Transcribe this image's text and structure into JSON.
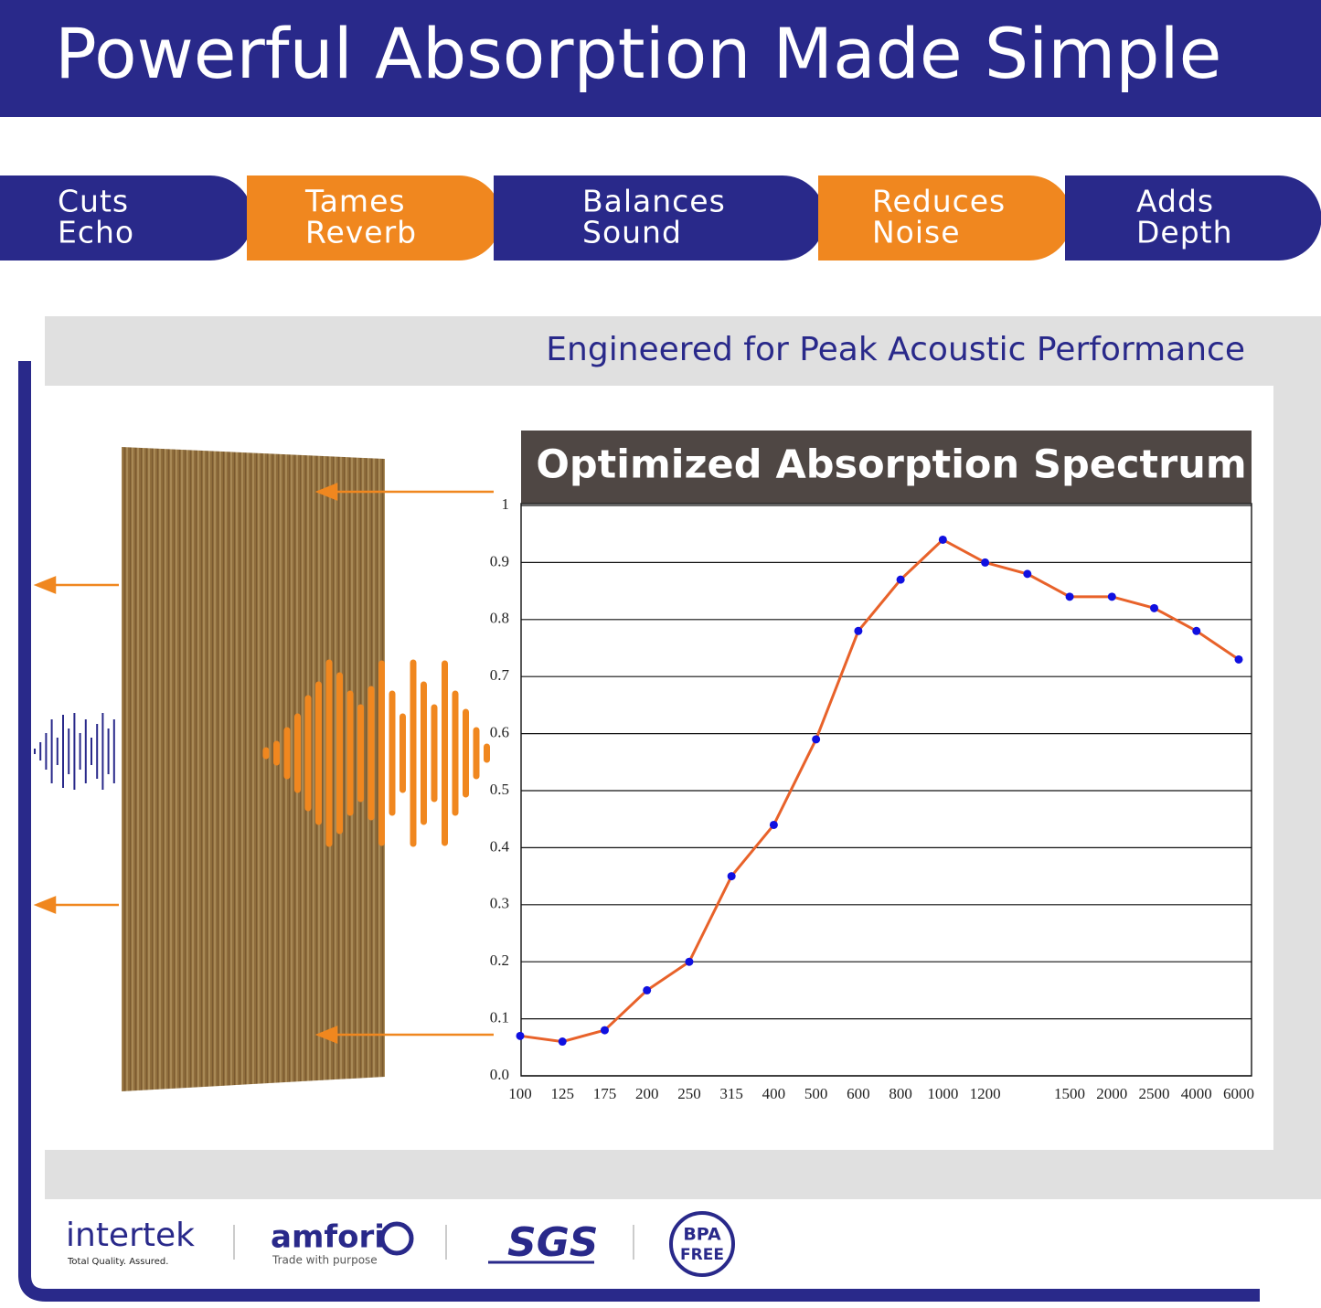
{
  "header": {
    "title": "Powerful Absorption Made Simple"
  },
  "features": [
    [
      "Cuts",
      "Echo"
    ],
    [
      "Tames",
      "Reverb"
    ],
    [
      "Balances",
      "Sound"
    ],
    [
      "Reduces",
      "Noise"
    ],
    [
      "Adds",
      "Depth"
    ]
  ],
  "section_title": "Engineered for Peak Acoustic Performance",
  "logos": {
    "intertek": "intertek",
    "intertek_tagline": "Total Quality. Assured.",
    "amfori": "amfori",
    "amfori_tagline": "Trade with purpose",
    "sgs": "SGS",
    "bpa": "BPA",
    "free": "FREE"
  },
  "chart_data": {
    "type": "line",
    "title": "Optimized Absorption Spectrum",
    "categories": [
      "100",
      "125",
      "175",
      "200",
      "250",
      "315",
      "400",
      "500",
      "600",
      "800",
      "1000",
      "1200",
      null,
      "1500",
      "2000",
      "2500",
      "4000",
      "6000"
    ],
    "series": [
      {
        "color": "#e8622a",
        "values": [
          0.07,
          0.06,
          0.08,
          0.15,
          0.2,
          0.35,
          0.44,
          0.59,
          0.78,
          0.87,
          0.94,
          0.9,
          0.88,
          0.84,
          0.84,
          0.82,
          0.78,
          0.73
        ]
      }
    ],
    "marker_color": "#1010e0",
    "ylim": [
      0,
      1
    ],
    "yticks": [
      {
        "value": 0,
        "label": "0.0"
      },
      0.1,
      0.2,
      0.3,
      0.4,
      0.5,
      0.6,
      0.7,
      0.8,
      0.9,
      1
    ],
    "grid": true
  }
}
